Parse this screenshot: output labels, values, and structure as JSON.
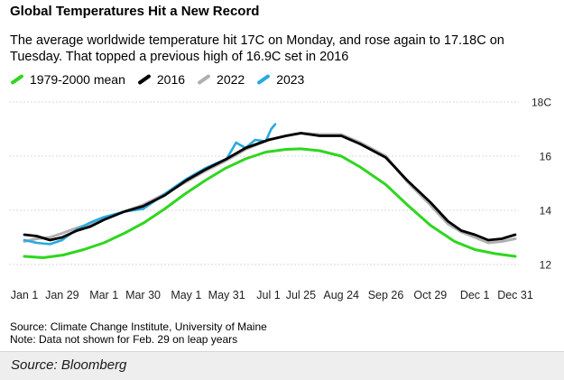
{
  "header": {
    "title": "Global Temperatures Hit a New Record",
    "subtitle": "The average worldwide temperature hit 17C on Monday, and rose again to 17.18C on Tuesday. That topped a previous high of 16.9C set in 2016"
  },
  "footnotes": {
    "source": "Source: Climate Change Institute, University of Maine",
    "note": "Note: Data not shown for Feb. 29 on leap years"
  },
  "caption": "Source: Bloomberg",
  "chart_data": {
    "type": "line",
    "x_unit": "day of year",
    "x_ticks": [
      {
        "day": 1,
        "label": "Jan 1"
      },
      {
        "day": 29,
        "label": "Jan 29"
      },
      {
        "day": 60,
        "label": "Mar 1"
      },
      {
        "day": 89,
        "label": "Mar 30"
      },
      {
        "day": 121,
        "label": "May 1"
      },
      {
        "day": 151,
        "label": "May 31"
      },
      {
        "day": 182,
        "label": "Jul 1"
      },
      {
        "day": 206,
        "label": "Jul 25"
      },
      {
        "day": 236,
        "label": "Aug 24"
      },
      {
        "day": 269,
        "label": "Sep 26"
      },
      {
        "day": 302,
        "label": "Oct 29"
      },
      {
        "day": 335,
        "label": "Dec 1"
      },
      {
        "day": 365,
        "label": "Dec 31"
      }
    ],
    "y_ticks": [
      {
        "value": 12,
        "label": "12"
      },
      {
        "value": 14,
        "label": "14"
      },
      {
        "value": 16,
        "label": "16"
      },
      {
        "value": 18,
        "label": "18C"
      }
    ],
    "ylim": [
      11.7,
      18.3
    ],
    "xlim": [
      1,
      365
    ],
    "grid": true,
    "legend_position": "top",
    "series": [
      {
        "name": "1979-2000 mean",
        "color": "#2fd61f",
        "points": [
          [
            1,
            12.3
          ],
          [
            15,
            12.25
          ],
          [
            30,
            12.35
          ],
          [
            45,
            12.55
          ],
          [
            60,
            12.8
          ],
          [
            75,
            13.15
          ],
          [
            90,
            13.55
          ],
          [
            105,
            14.05
          ],
          [
            120,
            14.6
          ],
          [
            135,
            15.1
          ],
          [
            150,
            15.55
          ],
          [
            165,
            15.9
          ],
          [
            180,
            16.15
          ],
          [
            195,
            16.25
          ],
          [
            206,
            16.27
          ],
          [
            220,
            16.2
          ],
          [
            236,
            16.0
          ],
          [
            250,
            15.6
          ],
          [
            269,
            14.95
          ],
          [
            285,
            14.2
          ],
          [
            302,
            13.45
          ],
          [
            320,
            12.85
          ],
          [
            335,
            12.55
          ],
          [
            350,
            12.4
          ],
          [
            365,
            12.3
          ]
        ]
      },
      {
        "name": "2016",
        "color": "#000000",
        "points": [
          [
            1,
            13.1
          ],
          [
            10,
            13.05
          ],
          [
            20,
            12.9
          ],
          [
            29,
            13.0
          ],
          [
            40,
            13.25
          ],
          [
            50,
            13.4
          ],
          [
            60,
            13.65
          ],
          [
            75,
            13.95
          ],
          [
            89,
            14.15
          ],
          [
            105,
            14.55
          ],
          [
            121,
            15.1
          ],
          [
            135,
            15.5
          ],
          [
            151,
            15.9
          ],
          [
            165,
            16.3
          ],
          [
            182,
            16.6
          ],
          [
            195,
            16.75
          ],
          [
            206,
            16.85
          ],
          [
            220,
            16.75
          ],
          [
            236,
            16.75
          ],
          [
            250,
            16.45
          ],
          [
            269,
            15.95
          ],
          [
            285,
            15.1
          ],
          [
            302,
            14.3
          ],
          [
            315,
            13.6
          ],
          [
            325,
            13.25
          ],
          [
            335,
            13.1
          ],
          [
            345,
            12.9
          ],
          [
            355,
            12.95
          ],
          [
            365,
            13.1
          ]
        ]
      },
      {
        "name": "2022",
        "color": "#b0b0b0",
        "points": [
          [
            1,
            12.85
          ],
          [
            10,
            12.95
          ],
          [
            20,
            13.0
          ],
          [
            29,
            13.15
          ],
          [
            40,
            13.35
          ],
          [
            50,
            13.5
          ],
          [
            60,
            13.7
          ],
          [
            75,
            13.95
          ],
          [
            89,
            14.2
          ],
          [
            105,
            14.6
          ],
          [
            121,
            15.05
          ],
          [
            135,
            15.45
          ],
          [
            151,
            15.85
          ],
          [
            165,
            16.25
          ],
          [
            182,
            16.6
          ],
          [
            195,
            16.75
          ],
          [
            206,
            16.85
          ],
          [
            220,
            16.8
          ],
          [
            236,
            16.8
          ],
          [
            250,
            16.5
          ],
          [
            269,
            16.0
          ],
          [
            285,
            15.05
          ],
          [
            302,
            14.2
          ],
          [
            315,
            13.5
          ],
          [
            325,
            13.2
          ],
          [
            335,
            13.0
          ],
          [
            345,
            12.8
          ],
          [
            355,
            12.85
          ],
          [
            365,
            12.95
          ]
        ]
      },
      {
        "name": "2023",
        "color": "#29a9e0",
        "points": [
          [
            1,
            12.9
          ],
          [
            10,
            12.8
          ],
          [
            20,
            12.75
          ],
          [
            29,
            12.9
          ],
          [
            40,
            13.3
          ],
          [
            50,
            13.55
          ],
          [
            60,
            13.75
          ],
          [
            75,
            13.95
          ],
          [
            89,
            14.05
          ],
          [
            105,
            14.6
          ],
          [
            121,
            15.15
          ],
          [
            135,
            15.55
          ],
          [
            151,
            15.9
          ],
          [
            158,
            16.5
          ],
          [
            165,
            16.3
          ],
          [
            172,
            16.6
          ],
          [
            180,
            16.55
          ],
          [
            184,
            17.0
          ],
          [
            187,
            17.18
          ]
        ]
      }
    ]
  }
}
